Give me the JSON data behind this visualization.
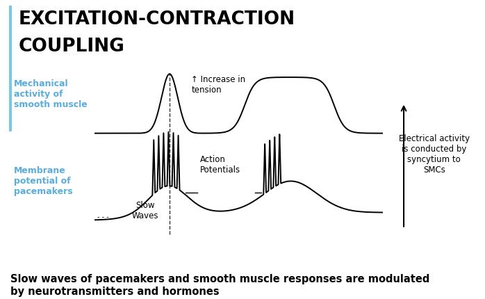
{
  "title_line1": "EXCITATION-CONTRACTION",
  "title_line2": "COUPLING",
  "title_color": "#000000",
  "title_fontsize": 19,
  "title_fontweight": "bold",
  "background_color": "#ffffff",
  "label_mechanical": "Mechanical\nactivity of\nsmooth muscle",
  "label_membrane": "Membrane\npotential of\npacemakers",
  "label_increase": "↑ Increase in\ntension",
  "label_action": "Action\nPotentials",
  "label_slow": "Slow\nWaves",
  "label_electrical": "Electrical activity\nis conducted by\nsyncytium to\nSMCs",
  "label_color_blue": "#5aaddc",
  "label_color_black": "#000000",
  "footer": "Slow waves of pacemakers and smooth muscle responses are modulated\nby neurotransmitters and hormones",
  "footer_fontsize": 10.5,
  "left_bar_color": "#7ac8e0"
}
